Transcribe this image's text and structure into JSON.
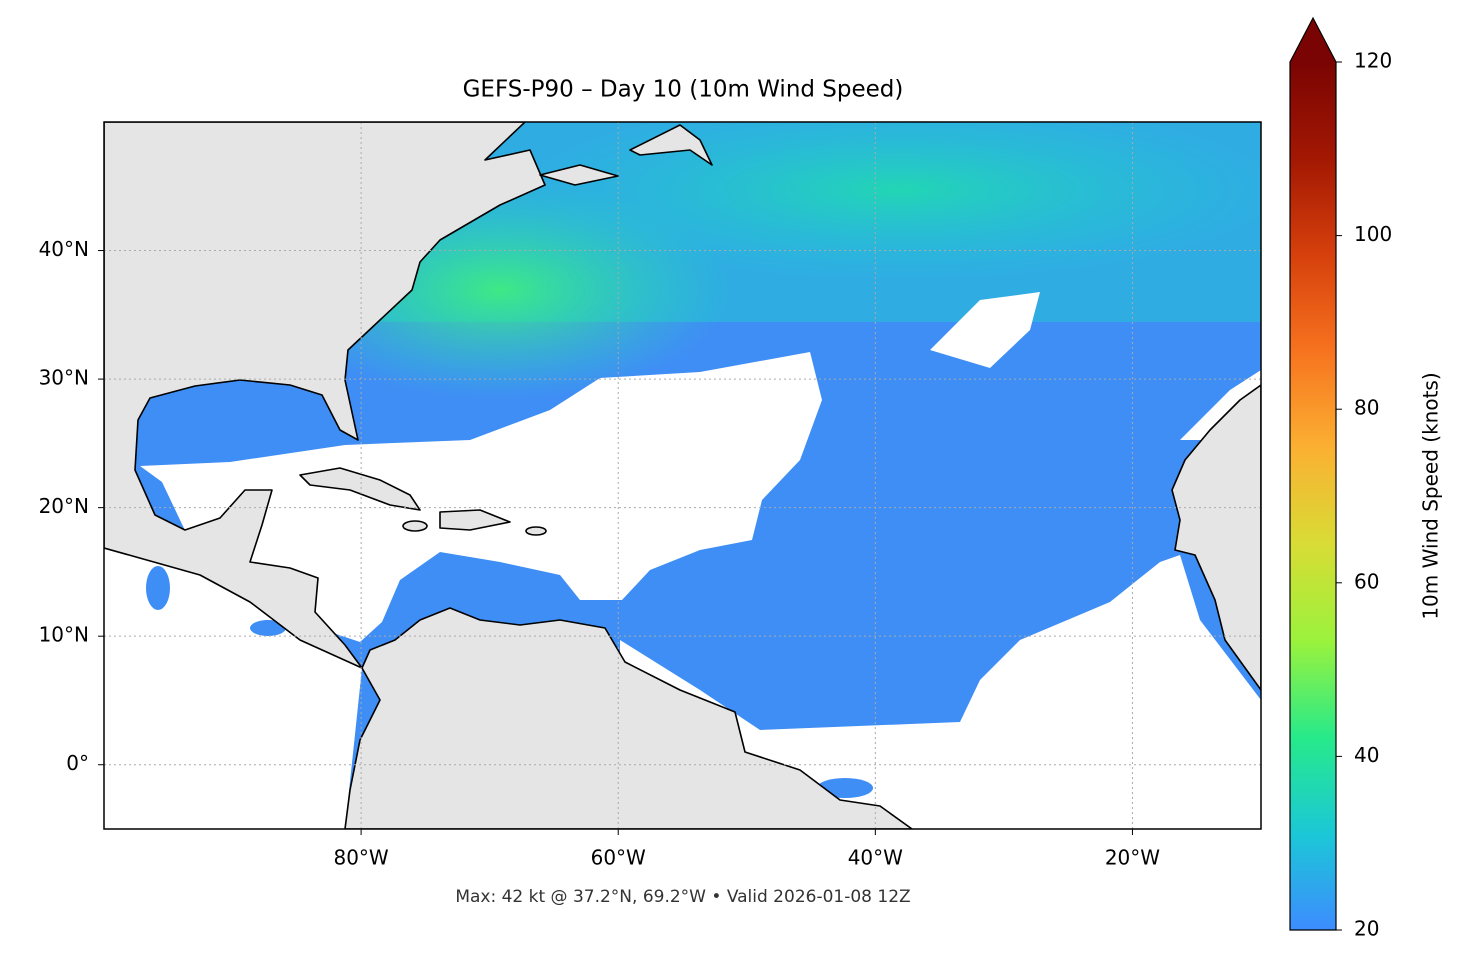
{
  "chart_data": {
    "type": "map",
    "title": "GEFS-P90 – Day 10 (10m Wind Speed)",
    "note": "Max: 42 kt @ 37.2°N, 69.2°W • Valid 2026-01-08 12Z",
    "xlim": [
      -100,
      -10
    ],
    "ylim": [
      -5,
      50
    ],
    "xticks": [
      {
        "value": -80,
        "label": "80°W"
      },
      {
        "value": -60,
        "label": "60°W"
      },
      {
        "value": -40,
        "label": "40°W"
      },
      {
        "value": -20,
        "label": "20°W"
      }
    ],
    "yticks": [
      {
        "value": 0,
        "label": "0°"
      },
      {
        "value": 10,
        "label": "10°N"
      },
      {
        "value": 20,
        "label": "20°N"
      },
      {
        "value": 30,
        "label": "30°N"
      },
      {
        "value": 40,
        "label": "40°N"
      }
    ],
    "grid": true,
    "colorbar": {
      "label": "10m Wind Speed (knots)",
      "lim": [
        20,
        120
      ],
      "ticks": [
        20,
        40,
        60,
        80,
        100,
        120
      ],
      "extend": "max",
      "colors": [
        "#3d8cff",
        "#1bc8d6",
        "#27ea8a",
        "#9bf23c",
        "#d8dc35",
        "#fbb032",
        "#f7731f",
        "#d6400c",
        "#a31803",
        "#7a0403"
      ]
    }
  }
}
